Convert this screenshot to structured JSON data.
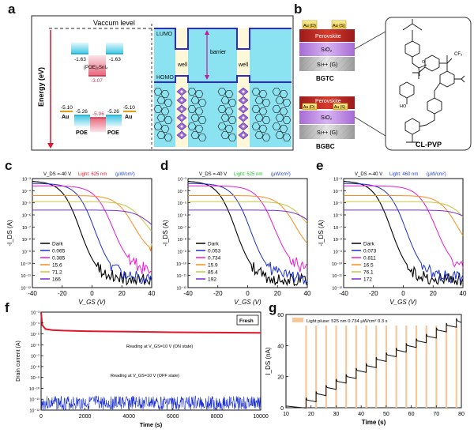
{
  "panels": {
    "a": "a",
    "b": "b",
    "c": "c",
    "d": "d",
    "e": "e",
    "f": "f",
    "g": "g"
  },
  "panel_a": {
    "vacuum_label": "Vaccum level",
    "energy_axis": "Energy (eV)",
    "compound": "(POE)₂SnI₄",
    "levels": {
      "left_top": "-1.63",
      "right_top": "-1.63",
      "mid": "-3.07",
      "au_left": "-5.10",
      "au_right": "-5.10",
      "poe_left": "-5.26",
      "poe_right": "-5.26",
      "center_bottom": "-5.06"
    },
    "au": "Au",
    "poe": "POE",
    "lumo": "LUMO",
    "homo": "HOMO",
    "well": "well",
    "barrier": "barrier"
  },
  "panel_b": {
    "bgtc": {
      "au_d": "Au (D)",
      "au_s": "Au (S)",
      "perovskite": "Perovskite",
      "sio2": "SiO₂",
      "si": "Si++ (G)",
      "name": "BGTC"
    },
    "bgbc": {
      "au_d": "Au (D)",
      "au_s": "Au (S)",
      "perovskite": "Perovskite",
      "sio2": "SiO₂",
      "si": "Si++ (G)",
      "name": "BGBC"
    },
    "polymer": "CL-PVP",
    "cf3": "CF₃",
    "oh": "HO"
  },
  "transfer_panels": [
    {
      "vds": "V_DS =-40 V",
      "light": "Light: 625 nm",
      "units": "(μW/cm²)",
      "light_color": "#e0162b",
      "legend": [
        "Dark",
        "0.065",
        "0.385",
        "15.6",
        "71.2",
        "166"
      ]
    },
    {
      "vds": "V_DS =-40 V",
      "light": "Light: 525 nm",
      "units": "(μW/cm²)",
      "light_color": "#1fbf2a",
      "legend": [
        "Dark",
        "0.053",
        "0.734",
        "15.9",
        "85.4",
        "192"
      ]
    },
    {
      "vds": "V_DS =-40 V",
      "light": "Light: 460 nm",
      "units": "(μW/cm²)",
      "light_color": "#1f3fd6",
      "legend": [
        "Dark",
        "0.073",
        "0.811",
        "16.5",
        "76.1",
        "172"
      ]
    }
  ],
  "transfer_axes": {
    "ylabel": "-I_DS (A)",
    "xlabel": "V_GS (V)",
    "xticks": [
      "-40",
      "-20",
      "0",
      "20",
      "40"
    ],
    "yticks": [
      "10⁻³",
      "10⁻⁴",
      "10⁻⁵",
      "10⁻⁶",
      "10⁻⁷",
      "10⁻⁸",
      "10⁻⁹",
      "10⁻¹⁰",
      "10⁻¹¹",
      "10⁻¹²"
    ],
    "series_colors": [
      "#000000",
      "#1a2fd0",
      "#e81ad6",
      "#ff8a1a",
      "#c6c640",
      "#7a2bd0"
    ]
  },
  "panel_f": {
    "ylabel": "Drain current (A)",
    "xlabel": "Time (s)",
    "xticks": [
      "0",
      "2000",
      "4000",
      "6000",
      "8000",
      "10000"
    ],
    "yticks": [
      "10⁻³",
      "10⁻⁴",
      "10⁻⁵",
      "10⁻⁶",
      "10⁻⁷",
      "10⁻⁸",
      "10⁻⁹",
      "10⁻¹⁰",
      "10⁻¹¹",
      "10⁻¹²"
    ],
    "legend": "Fresh",
    "on_text": "Reading at V_GS=10 V (ON state)",
    "off_text": "Reading at V_GS=10 V (OFF state)"
  },
  "panel_g": {
    "ylabel": "I_DS (nA)",
    "xlabel": "Time (s)",
    "xticks": [
      "10",
      "20",
      "30",
      "40",
      "50",
      "60",
      "70",
      "80"
    ],
    "yticks": [
      "0",
      "20",
      "40",
      "60"
    ],
    "legend": "Light pluse:  525 nm  0.734 μW/cm²  0.3 s"
  },
  "chart_data": [
    {
      "type": "line",
      "panel": "f",
      "xlabel": "Time (s)",
      "ylabel": "Drain current (A)",
      "xlim": [
        0,
        10000
      ],
      "ylim_log10": [
        -12,
        -3
      ],
      "series": [
        {
          "name": "Fresh",
          "x": [
            0,
            50,
            200,
            500,
            1000,
            2000,
            4000,
            6000,
            8000,
            10000
          ],
          "log10_y": [
            -3.0,
            -4.2,
            -4.55,
            -4.65,
            -4.7,
            -4.75,
            -4.8,
            -4.85,
            -4.88,
            -4.9
          ]
        }
      ]
    },
    {
      "type": "line",
      "panel": "g",
      "xlabel": "Time (s)",
      "ylabel": "I_DS (nA)",
      "xlim": [
        10,
        80
      ],
      "ylim": [
        0,
        60
      ],
      "pulse_times": [
        18,
        22,
        26,
        30,
        34,
        38,
        42,
        46,
        50,
        54,
        58,
        62,
        66,
        70,
        74,
        78
      ],
      "step_levels": [
        1,
        5,
        9,
        13,
        17,
        20,
        24,
        27,
        31,
        34,
        37,
        40,
        43,
        46,
        50,
        53,
        56
      ]
    }
  ]
}
